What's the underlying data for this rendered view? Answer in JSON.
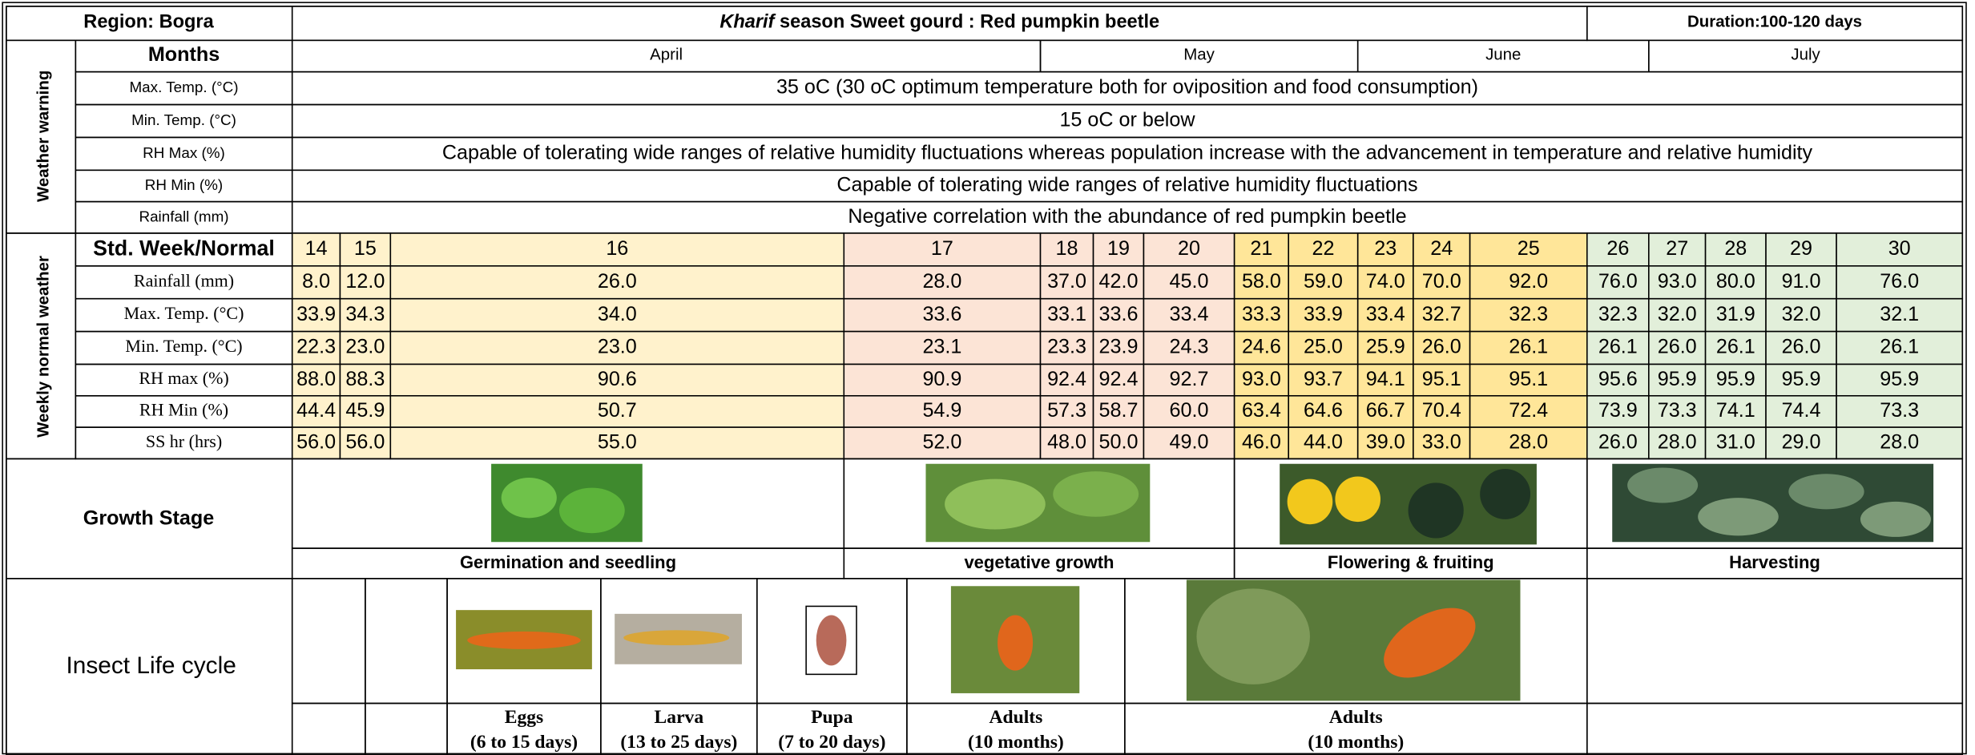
{
  "header": {
    "region": "Region: Bogra",
    "title_italic": "Kharif",
    "title": " season Sweet gourd :    Red pumpkin beetle",
    "duration": "Duration:100-120 days"
  },
  "weather_warning": {
    "label": "Weather warning",
    "months_label": "Months",
    "months": [
      "April",
      "May",
      "June",
      "July"
    ],
    "rows": [
      {
        "label": "Max. Temp. (°C)",
        "text": "35 oC (30 oC optimum temperature both for oviposition and food consumption)"
      },
      {
        "label": "Min. Temp. (°C)",
        "text": "15 oC or below"
      },
      {
        "label": "RH Max (%)",
        "text": "Capable of tolerating wide ranges of relative humidity fluctuations whereas population increase with the advancement in temperature and relative humidity"
      },
      {
        "label": "RH Min (%)",
        "text": "Capable of tolerating wide ranges of relative humidity fluctuations"
      },
      {
        "label": "Rainfall (mm)",
        "text": "Negative correlation with the abundance of red pumpkin beetle"
      }
    ]
  },
  "weekly_normal": {
    "label": "Weekly normal weather",
    "week_label": "Std. Week/Normal",
    "weeks": [
      14,
      15,
      16,
      17,
      18,
      19,
      20,
      21,
      22,
      23,
      24,
      25,
      26,
      27,
      28,
      29,
      30
    ],
    "colors": [
      "#fff2cc",
      "#fff2cc",
      "#fff2cc",
      "#fce4d6",
      "#fce4d6",
      "#fce4d6",
      "#fce4d6",
      "#ffe699",
      "#ffe699",
      "#ffe699",
      "#ffe699",
      "#ffe699",
      "#e2efda",
      "#e2efda",
      "#e2efda",
      "#e2efda",
      "#e2efda"
    ],
    "rows": [
      {
        "label": "Rainfall  (mm)",
        "values": [
          "8.0",
          "12.0",
          "26.0",
          "28.0",
          "37.0",
          "42.0",
          "45.0",
          "58.0",
          "59.0",
          "74.0",
          "70.0",
          "92.0",
          "76.0",
          "93.0",
          "80.0",
          "91.0",
          "76.0"
        ]
      },
      {
        "label": "Max. Temp. (°C)",
        "values": [
          "33.9",
          "34.3",
          "34.0",
          "33.6",
          "33.1",
          "33.6",
          "33.4",
          "33.3",
          "33.9",
          "33.4",
          "32.7",
          "32.3",
          "32.3",
          "32.0",
          "31.9",
          "32.0",
          "32.1"
        ]
      },
      {
        "label": "Min. Temp. (°C)",
        "values": [
          "22.3",
          "23.0",
          "23.0",
          "23.1",
          "23.3",
          "23.9",
          "24.3",
          "24.6",
          "25.0",
          "25.9",
          "26.0",
          "26.1",
          "26.1",
          "26.0",
          "26.1",
          "26.0",
          "26.1"
        ]
      },
      {
        "label": "RH max (%)",
        "values": [
          "88.0",
          "88.3",
          "90.6",
          "90.9",
          "92.4",
          "92.4",
          "92.7",
          "93.0",
          "93.7",
          "94.1",
          "95.1",
          "95.1",
          "95.6",
          "95.9",
          "95.9",
          "95.9",
          "95.9"
        ]
      },
      {
        "label": "RH Min (%)",
        "values": [
          "44.4",
          "45.9",
          "50.7",
          "54.9",
          "57.3",
          "58.7",
          "60.0",
          "63.4",
          "64.6",
          "66.7",
          "70.4",
          "72.4",
          "73.9",
          "73.3",
          "74.1",
          "74.4",
          "73.3"
        ]
      },
      {
        "label": "SS hr (hrs)",
        "values": [
          "56.0",
          "56.0",
          "55.0",
          "52.0",
          "48.0",
          "50.0",
          "49.0",
          "46.0",
          "44.0",
          "39.0",
          "33.0",
          "28.0",
          "26.0",
          "28.0",
          "31.0",
          "29.0",
          "28.0"
        ]
      }
    ]
  },
  "growth_stage": {
    "label": "Growth Stage",
    "stages": [
      "Germination and seedling",
      "vegetative growth",
      "Flowering & fruiting",
      "Harvesting"
    ]
  },
  "insect_life_cycle": {
    "label": "Insect Life cycle",
    "stages": [
      {
        "name": "Eggs",
        "duration": "(6 to 15 days)"
      },
      {
        "name": "Larva",
        "duration": "(13 to 25 days)"
      },
      {
        "name": "Pupa",
        "duration": "(7 to 20 days)"
      },
      {
        "name": "Adults",
        "duration": "(10 months)"
      },
      {
        "name": "Adults",
        "duration": "(10 months)"
      }
    ]
  }
}
